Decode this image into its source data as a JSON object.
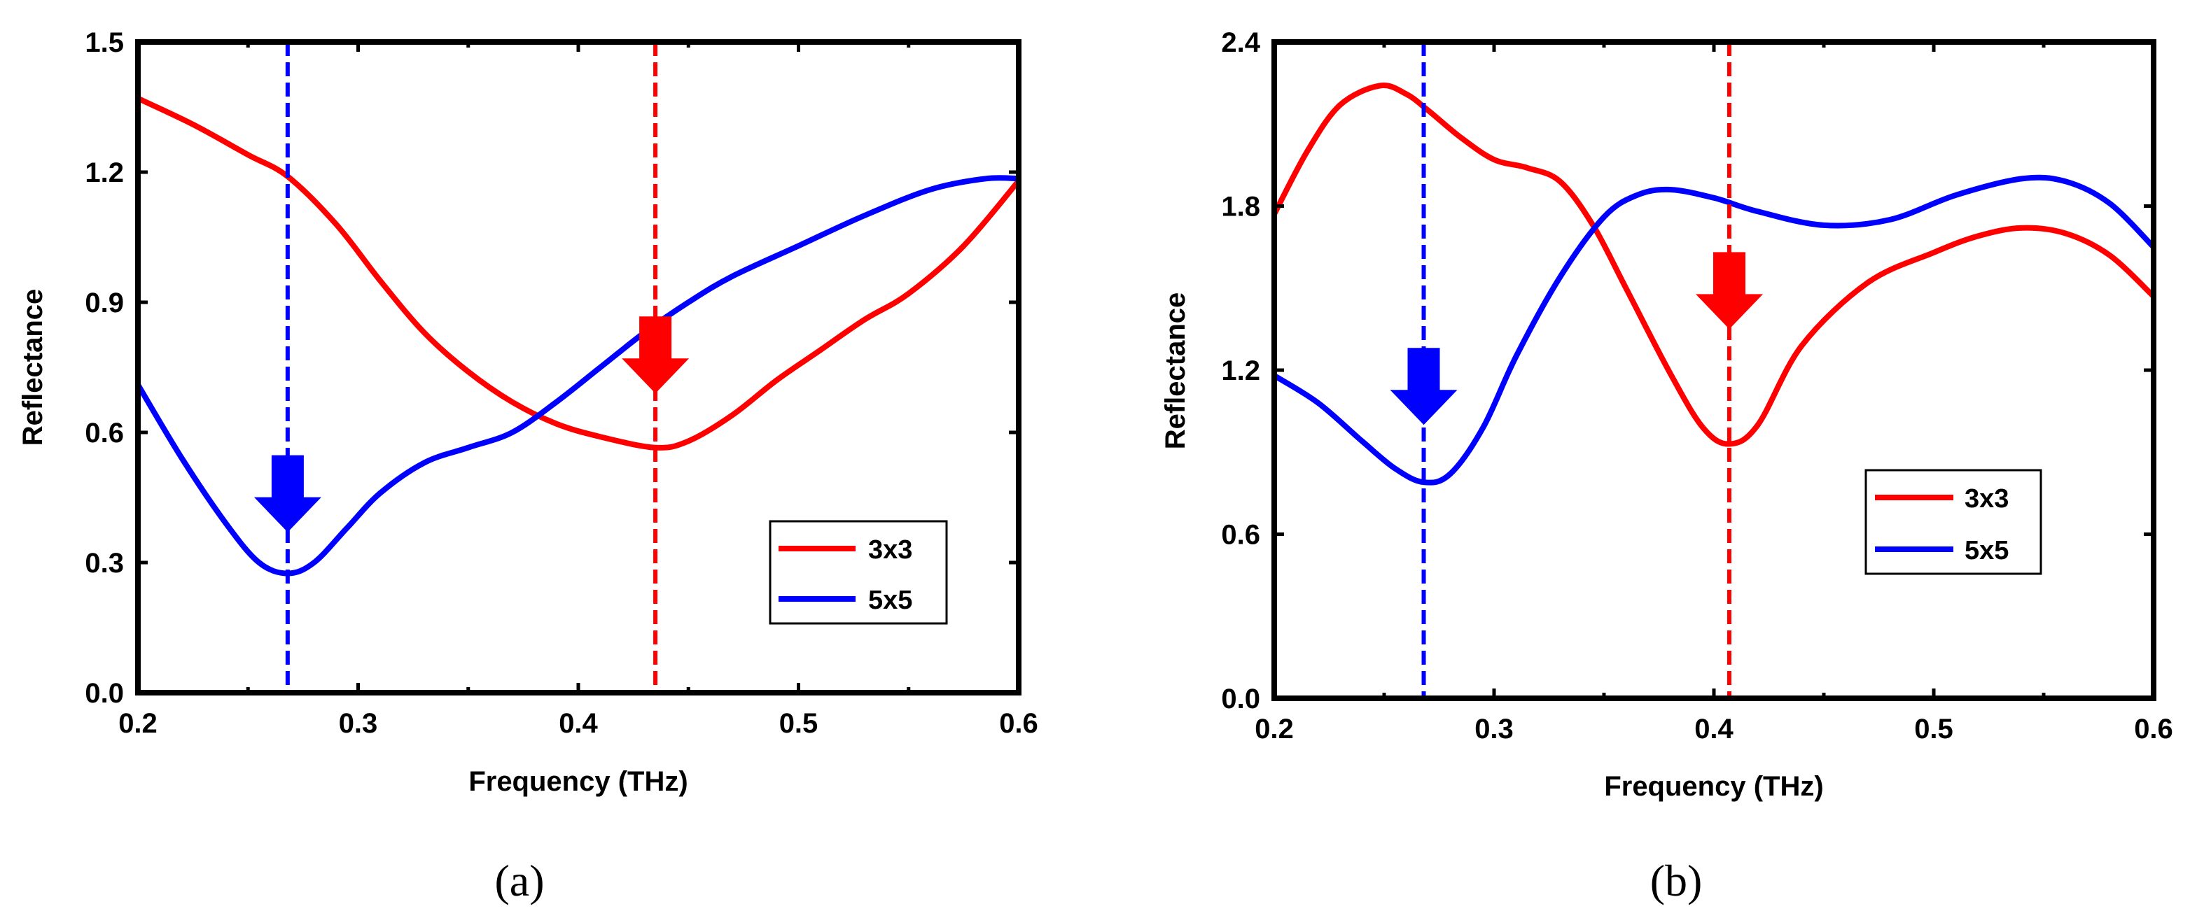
{
  "chart_data": [
    {
      "type": "line",
      "caption": "(a)",
      "xlabel": "Frequency (THz)",
      "ylabel": "Reflectance",
      "xlim": [
        0.2,
        0.6
      ],
      "ylim": [
        0.0,
        1.5
      ],
      "xticks": [
        0.2,
        0.3,
        0.4,
        0.5,
        0.6
      ],
      "xtick_labels": [
        "0.2",
        "0.3",
        "0.4",
        "0.5",
        "0.6"
      ],
      "yticks": [
        0.0,
        0.3,
        0.6,
        0.9,
        1.2,
        1.5
      ],
      "ytick_labels": [
        "0.0",
        "0.3",
        "0.6",
        "0.9",
        "1.2",
        "1.5"
      ],
      "grid": false,
      "legend_position": "right",
      "series": [
        {
          "name": "3x3",
          "color": "#ff0000",
          "x": [
            0.2,
            0.225,
            0.25,
            0.268,
            0.29,
            0.31,
            0.33,
            0.35,
            0.37,
            0.39,
            0.41,
            0.435,
            0.45,
            0.47,
            0.49,
            0.51,
            0.53,
            0.55,
            0.575,
            0.6
          ],
          "y": [
            1.37,
            1.31,
            1.24,
            1.19,
            1.08,
            0.95,
            0.83,
            0.74,
            0.67,
            0.62,
            0.59,
            0.565,
            0.58,
            0.64,
            0.72,
            0.79,
            0.86,
            0.92,
            1.03,
            1.18
          ]
        },
        {
          "name": "5x5",
          "color": "#0000ff",
          "x": [
            0.2,
            0.22,
            0.24,
            0.255,
            0.268,
            0.28,
            0.295,
            0.31,
            0.33,
            0.35,
            0.37,
            0.39,
            0.41,
            0.43,
            0.45,
            0.47,
            0.5,
            0.53,
            0.56,
            0.585,
            0.6
          ],
          "y": [
            0.71,
            0.54,
            0.39,
            0.3,
            0.275,
            0.3,
            0.38,
            0.46,
            0.53,
            0.565,
            0.6,
            0.67,
            0.75,
            0.83,
            0.9,
            0.96,
            1.03,
            1.1,
            1.16,
            1.185,
            1.185
          ]
        }
      ],
      "markers": [
        {
          "series": "5x5",
          "x": 0.268,
          "arrow_y": 0.37,
          "color": "#0000ff"
        },
        {
          "series": "3x3",
          "x": 0.435,
          "arrow_y": 0.69,
          "color": "#ff0000"
        }
      ]
    },
    {
      "type": "line",
      "caption": "(b)",
      "xlabel": "Frequency (THz)",
      "ylabel": "Reflectance",
      "xlim": [
        0.2,
        0.6
      ],
      "ylim": [
        0.0,
        2.4
      ],
      "xticks": [
        0.2,
        0.3,
        0.4,
        0.5,
        0.6
      ],
      "xtick_labels": [
        "0.2",
        "0.3",
        "0.4",
        "0.5",
        "0.6"
      ],
      "yticks": [
        0.0,
        0.6,
        1.2,
        1.8,
        2.4
      ],
      "ytick_labels": [
        "0.0",
        "0.6",
        "1.2",
        "1.8",
        "2.4"
      ],
      "grid": false,
      "legend_position": "right",
      "series": [
        {
          "name": "3x3",
          "color": "#ff0000",
          "x": [
            0.2,
            0.215,
            0.23,
            0.248,
            0.26,
            0.27,
            0.285,
            0.3,
            0.315,
            0.33,
            0.345,
            0.36,
            0.38,
            0.395,
            0.407,
            0.42,
            0.44,
            0.47,
            0.5,
            0.52,
            0.54,
            0.56,
            0.58,
            0.6
          ],
          "y": [
            1.77,
            2.0,
            2.17,
            2.24,
            2.21,
            2.15,
            2.05,
            1.97,
            1.94,
            1.89,
            1.73,
            1.5,
            1.19,
            0.99,
            0.93,
            1.0,
            1.29,
            1.52,
            1.63,
            1.69,
            1.72,
            1.7,
            1.62,
            1.47
          ]
        },
        {
          "name": "5x5",
          "color": "#0000ff",
          "x": [
            0.2,
            0.22,
            0.24,
            0.255,
            0.268,
            0.28,
            0.295,
            0.31,
            0.33,
            0.35,
            0.365,
            0.38,
            0.4,
            0.42,
            0.45,
            0.48,
            0.51,
            0.54,
            0.56,
            0.58,
            0.6
          ],
          "y": [
            1.18,
            1.08,
            0.94,
            0.84,
            0.79,
            0.82,
            0.99,
            1.25,
            1.54,
            1.76,
            1.84,
            1.86,
            1.83,
            1.78,
            1.73,
            1.75,
            1.84,
            1.9,
            1.89,
            1.81,
            1.65
          ]
        }
      ],
      "markers": [
        {
          "series": "5x5",
          "x": 0.268,
          "arrow_y": 1.0,
          "color": "#0000ff"
        },
        {
          "series": "3x3",
          "x": 0.407,
          "arrow_y": 1.35,
          "color": "#ff0000"
        }
      ]
    }
  ]
}
